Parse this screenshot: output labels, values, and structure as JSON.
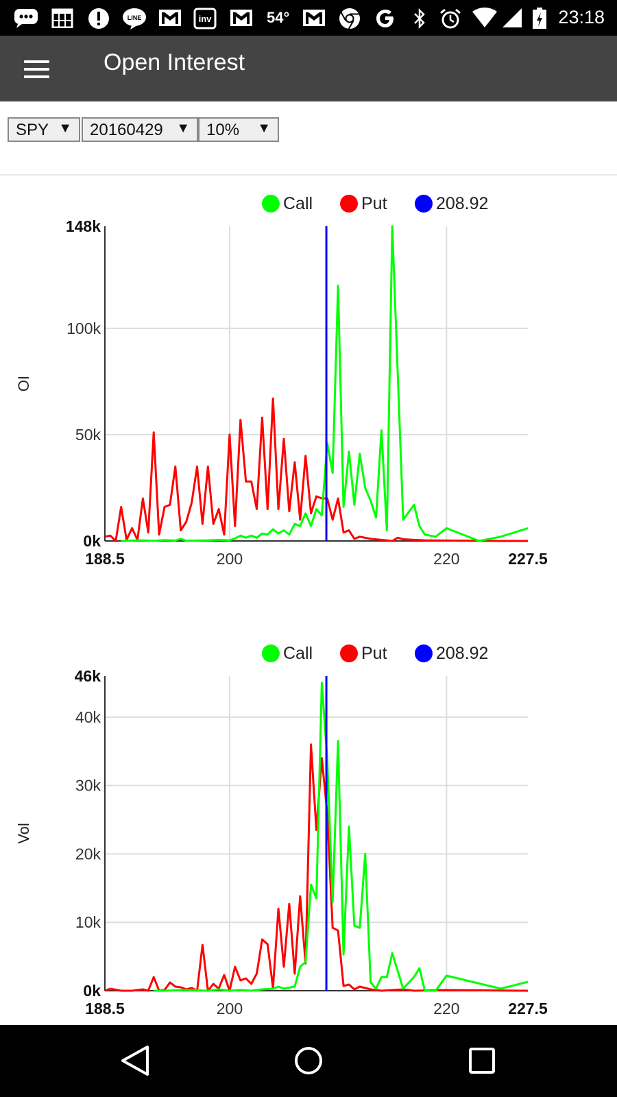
{
  "status_bar": {
    "time": "23:18",
    "temperature": "54°",
    "icons": [
      "messaging-icon",
      "calendar-icon",
      "alert-icon",
      "line-icon",
      "gmail-icon",
      "investing-icon",
      "gmail-icon",
      "gmail-icon",
      "chrome-icon",
      "google-icon",
      "bluetooth-icon",
      "alarm-icon",
      "wifi-icon",
      "signal-icon",
      "battery-icon"
    ]
  },
  "app_bar": {
    "title": "Open Interest",
    "menu_icon": "menu-icon"
  },
  "controls": {
    "symbol": "SPY",
    "expiry": "20160429",
    "range": "10%",
    "arrow": "▼"
  },
  "colors": {
    "call": "#00ff00",
    "put": "#ff0000",
    "price": "#0000ff",
    "appbar": "#444444"
  },
  "chart_data": [
    {
      "type": "line",
      "ylabel": "OI",
      "legend": {
        "placement": "top-center",
        "items": [
          "Call",
          "Put",
          "208.92"
        ]
      },
      "price_line": 208.92,
      "xlim": [
        188.5,
        227.5
      ],
      "ylim": [
        0,
        148000
      ],
      "x_ticks": [
        {
          "value": 188.5,
          "label": "188.5",
          "bold": true
        },
        {
          "value": 200,
          "label": "200",
          "bold": false
        },
        {
          "value": 220,
          "label": "220",
          "bold": false
        },
        {
          "value": 227.5,
          "label": "227.5",
          "bold": true
        }
      ],
      "y_ticks": [
        {
          "value": 0,
          "label": "0k",
          "bold": true
        },
        {
          "value": 50000,
          "label": "50k",
          "bold": false
        },
        {
          "value": 100000,
          "label": "100k",
          "bold": false
        },
        {
          "value": 148000,
          "label": "148k",
          "bold": true
        }
      ],
      "grid": true,
      "series": [
        {
          "name": "Put",
          "color": "#ff0000",
          "points": [
            [
              188.5,
              2000
            ],
            [
              189,
              2500
            ],
            [
              189.5,
              0
            ],
            [
              190,
              16000
            ],
            [
              190.5,
              500
            ],
            [
              191,
              6000
            ],
            [
              191.5,
              500
            ],
            [
              192,
              20000
            ],
            [
              192.5,
              4000
            ],
            [
              193,
              51000
            ],
            [
              193.5,
              3000
            ],
            [
              194,
              16000
            ],
            [
              194.5,
              17000
            ],
            [
              195,
              35000
            ],
            [
              195.5,
              5000
            ],
            [
              196,
              9000
            ],
            [
              196.5,
              18000
            ],
            [
              197,
              35000
            ],
            [
              197.5,
              8000
            ],
            [
              198,
              35000
            ],
            [
              198.5,
              8000
            ],
            [
              199,
              15000
            ],
            [
              199.5,
              3000
            ],
            [
              200,
              50000
            ],
            [
              200.5,
              7000
            ],
            [
              201,
              57000
            ],
            [
              201.5,
              28000
            ],
            [
              202,
              28000
            ],
            [
              202.5,
              15000
            ],
            [
              203,
              58000
            ],
            [
              203.5,
              15000
            ],
            [
              204,
              67000
            ],
            [
              204.5,
              15000
            ],
            [
              205,
              48000
            ],
            [
              205.5,
              14000
            ],
            [
              206,
              37000
            ],
            [
              206.5,
              10000
            ],
            [
              207,
              40000
            ],
            [
              207.5,
              13000
            ],
            [
              208,
              21000
            ],
            [
              208.5,
              20000
            ],
            [
              209,
              20000
            ],
            [
              209.5,
              10000
            ],
            [
              210,
              20000
            ],
            [
              210.5,
              4000
            ],
            [
              211,
              5000
            ],
            [
              211.5,
              1000
            ],
            [
              212,
              2000
            ],
            [
              213,
              1000
            ],
            [
              214,
              500
            ],
            [
              215,
              0
            ],
            [
              215.5,
              1500
            ],
            [
              216,
              800
            ],
            [
              217,
              500
            ],
            [
              218,
              300
            ],
            [
              220,
              200
            ],
            [
              225,
              0
            ],
            [
              227.5,
              0
            ]
          ]
        },
        {
          "name": "Call",
          "color": "#00ff00",
          "points": [
            [
              190,
              0
            ],
            [
              191,
              200
            ],
            [
              192,
              300
            ],
            [
              193,
              100
            ],
            [
              194,
              400
            ],
            [
              195,
              200
            ],
            [
              195.5,
              1000
            ],
            [
              196,
              100
            ],
            [
              197,
              200
            ],
            [
              198,
              300
            ],
            [
              199,
              500
            ],
            [
              200,
              300
            ],
            [
              200.5,
              1200
            ],
            [
              201,
              2500
            ],
            [
              201.5,
              1500
            ],
            [
              202,
              2500
            ],
            [
              202.5,
              1500
            ],
            [
              203,
              3500
            ],
            [
              203.5,
              3000
            ],
            [
              204,
              5500
            ],
            [
              204.5,
              3500
            ],
            [
              205,
              5000
            ],
            [
              205.5,
              3000
            ],
            [
              206,
              8000
            ],
            [
              206.5,
              7000
            ],
            [
              207,
              13000
            ],
            [
              207.5,
              7000
            ],
            [
              208,
              15000
            ],
            [
              208.5,
              12000
            ],
            [
              209,
              46000
            ],
            [
              209.5,
              32000
            ],
            [
              210,
              120000
            ],
            [
              210.5,
              16000
            ],
            [
              211,
              42000
            ],
            [
              211.5,
              17000
            ],
            [
              212,
              41000
            ],
            [
              212.5,
              25000
            ],
            [
              213,
              19000
            ],
            [
              213.5,
              11000
            ],
            [
              214,
              52000
            ],
            [
              214.5,
              5000
            ],
            [
              215,
              148000
            ],
            [
              216,
              10000
            ],
            [
              217,
              17000
            ],
            [
              217.5,
              7000
            ],
            [
              218,
              3000
            ],
            [
              219,
              2000
            ],
            [
              220,
              6000
            ],
            [
              223,
              0
            ],
            [
              225,
              2000
            ],
            [
              227.5,
              6000
            ]
          ]
        }
      ]
    },
    {
      "type": "line",
      "ylabel": "Vol",
      "legend": {
        "placement": "top-center",
        "items": [
          "Call",
          "Put",
          "208.92"
        ]
      },
      "price_line": 208.92,
      "xlim": [
        188.5,
        227.5
      ],
      "ylim": [
        0,
        46000
      ],
      "x_ticks": [
        {
          "value": 188.5,
          "label": "188.5",
          "bold": true
        },
        {
          "value": 200,
          "label": "200",
          "bold": false
        },
        {
          "value": 220,
          "label": "220",
          "bold": false
        },
        {
          "value": 227.5,
          "label": "227.5",
          "bold": true
        }
      ],
      "y_ticks": [
        {
          "value": 0,
          "label": "0k",
          "bold": true
        },
        {
          "value": 10000,
          "label": "10k",
          "bold": false
        },
        {
          "value": 20000,
          "label": "20k",
          "bold": false
        },
        {
          "value": 30000,
          "label": "30k",
          "bold": false
        },
        {
          "value": 40000,
          "label": "40k",
          "bold": false
        },
        {
          "value": 46000,
          "label": "46k",
          "bold": true
        }
      ],
      "grid": true,
      "series": [
        {
          "name": "Put",
          "color": "#ff0000",
          "points": [
            [
              188.5,
              0
            ],
            [
              189,
              300
            ],
            [
              190,
              0
            ],
            [
              191,
              0
            ],
            [
              192,
              200
            ],
            [
              192.5,
              0
            ],
            [
              193,
              2000
            ],
            [
              193.5,
              0
            ],
            [
              194,
              100
            ],
            [
              194.5,
              1200
            ],
            [
              195,
              600
            ],
            [
              195.5,
              500
            ],
            [
              196,
              200
            ],
            [
              196.5,
              400
            ],
            [
              197,
              0
            ],
            [
              197.5,
              6700
            ],
            [
              198,
              0
            ],
            [
              198.5,
              1000
            ],
            [
              199,
              300
            ],
            [
              199.5,
              2300
            ],
            [
              200,
              0
            ],
            [
              200.5,
              3500
            ],
            [
              201,
              1500
            ],
            [
              201.5,
              1800
            ],
            [
              202,
              1000
            ],
            [
              202.5,
              2500
            ],
            [
              203,
              7500
            ],
            [
              203.5,
              6800
            ],
            [
              204,
              400
            ],
            [
              204.5,
              12000
            ],
            [
              205,
              3500
            ],
            [
              205.5,
              12700
            ],
            [
              206,
              2500
            ],
            [
              206.5,
              13800
            ],
            [
              207,
              4000
            ],
            [
              207.5,
              36000
            ],
            [
              208,
              23500
            ],
            [
              208.5,
              34000
            ],
            [
              209,
              26000
            ],
            [
              209.5,
              9200
            ],
            [
              210,
              8800
            ],
            [
              210.5,
              700
            ],
            [
              211,
              900
            ],
            [
              211.5,
              200
            ],
            [
              212,
              600
            ],
            [
              213,
              200
            ],
            [
              214,
              0
            ],
            [
              216,
              200
            ],
            [
              217,
              0
            ],
            [
              220,
              100
            ],
            [
              227.5,
              0
            ]
          ]
        },
        {
          "name": "Call",
          "color": "#00ff00",
          "points": [
            [
              193,
              0
            ],
            [
              194,
              0
            ],
            [
              196,
              100
            ],
            [
              198,
              0
            ],
            [
              199,
              200
            ],
            [
              200,
              0
            ],
            [
              201,
              100
            ],
            [
              202,
              0
            ],
            [
              203,
              200
            ],
            [
              204,
              300
            ],
            [
              204.5,
              600
            ],
            [
              205,
              300
            ],
            [
              206,
              600
            ],
            [
              206.5,
              3500
            ],
            [
              207,
              4200
            ],
            [
              207.5,
              15500
            ],
            [
              208,
              13500
            ],
            [
              208.5,
              45000
            ],
            [
              209,
              34000
            ],
            [
              209.5,
              13000
            ],
            [
              210,
              36500
            ],
            [
              210.5,
              5300
            ],
            [
              211,
              24000
            ],
            [
              211.5,
              9500
            ],
            [
              212,
              9200
            ],
            [
              212.5,
              20000
            ],
            [
              213,
              1200
            ],
            [
              213.5,
              300
            ],
            [
              214,
              2000
            ],
            [
              214.5,
              2000
            ],
            [
              215,
              5500
            ],
            [
              216,
              300
            ],
            [
              217,
              2000
            ],
            [
              217.5,
              3300
            ],
            [
              218,
              0
            ],
            [
              219,
              0
            ],
            [
              220,
              2200
            ],
            [
              225,
              300
            ],
            [
              227.5,
              1300
            ]
          ]
        }
      ]
    }
  ],
  "nav_bar": {
    "icons": [
      "back-icon",
      "home-icon",
      "recents-icon"
    ]
  }
}
